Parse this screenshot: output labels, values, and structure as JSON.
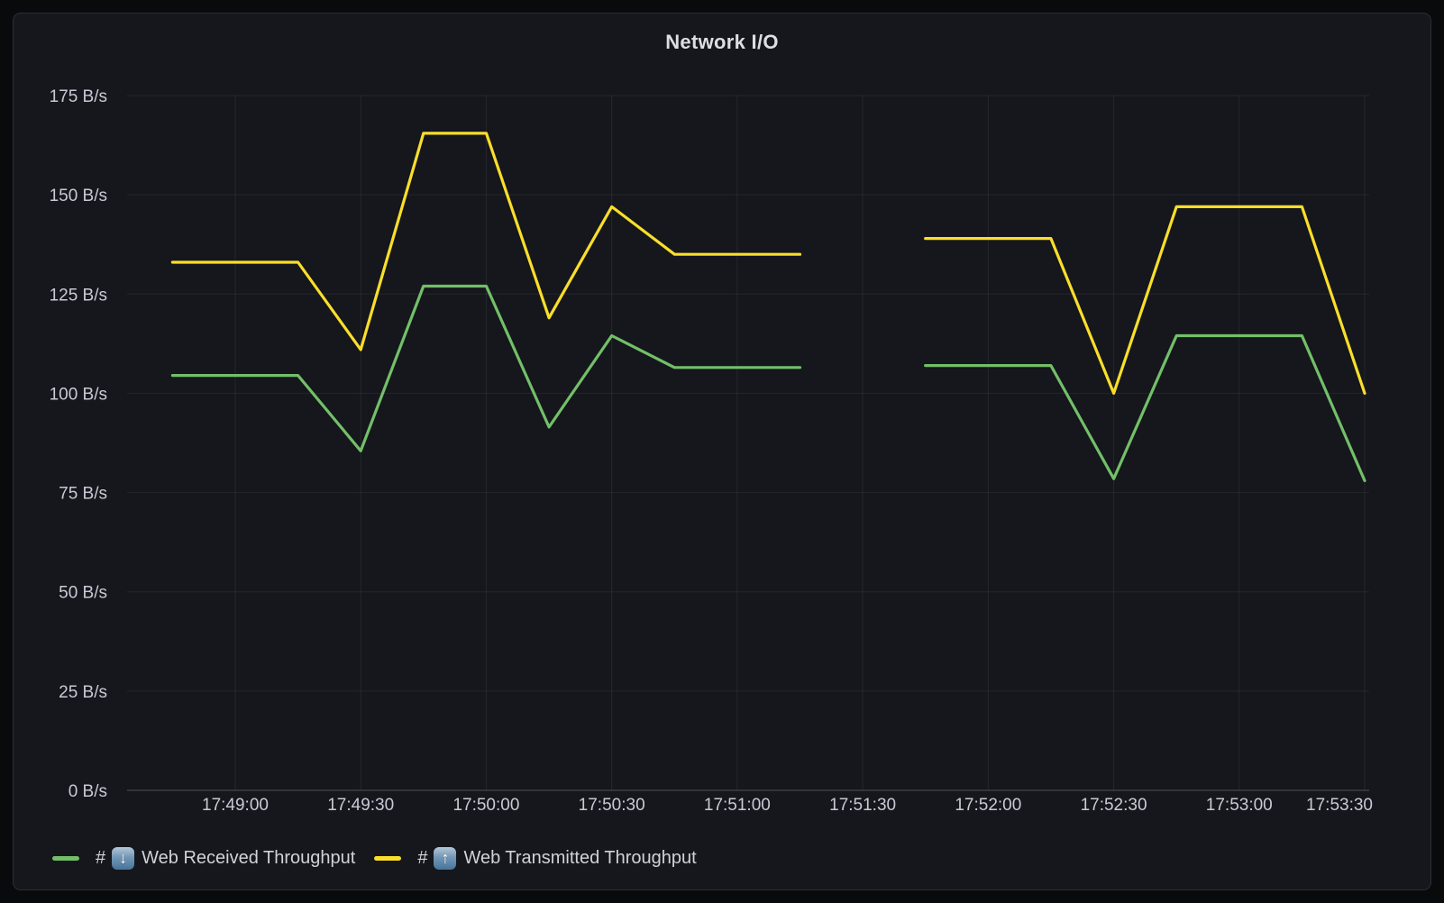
{
  "panel": {
    "title": "Network I/O"
  },
  "chart_data": {
    "type": "line",
    "title": "Network I/O",
    "x": [
      "17:48:45",
      "17:49:00",
      "17:49:15",
      "17:49:30",
      "17:49:45",
      "17:50:00",
      "17:50:15",
      "17:50:30",
      "17:50:45",
      "17:51:00",
      "17:51:15",
      "17:51:30",
      "17:51:45",
      "17:52:00",
      "17:52:15",
      "17:52:30",
      "17:52:45",
      "17:53:00",
      "17:53:15",
      "17:53:30"
    ],
    "x_tick_labels": [
      "17:49:00",
      "17:49:30",
      "17:50:00",
      "17:50:30",
      "17:51:00",
      "17:51:30",
      "17:52:00",
      "17:52:30",
      "17:53:00",
      "17:53:30"
    ],
    "y_tick_labels": [
      "0 B/s",
      "25 B/s",
      "50 B/s",
      "75 B/s",
      "100 B/s",
      "125 B/s",
      "150 B/s",
      "175 B/s"
    ],
    "ylim": [
      0,
      175
    ],
    "y_unit": "B/s",
    "grid": true,
    "legend_position": "bottom-left",
    "series": [
      {
        "name": "# ⬇ Web Received Throughput",
        "color": "#73bf69",
        "values": [
          104.5,
          104.5,
          104.5,
          85.5,
          127,
          127,
          91.5,
          114.5,
          106.5,
          106.5,
          106.5,
          null,
          107,
          107,
          107,
          78.5,
          114.5,
          114.5,
          114.5,
          78
        ]
      },
      {
        "name": "# ⬆ Web Transmitted Throughput",
        "color": "#fade2a",
        "values": [
          133,
          133,
          133,
          111,
          165.5,
          165.5,
          119,
          147,
          135,
          135,
          135,
          null,
          139,
          139,
          139,
          100,
          147,
          147,
          147,
          100
        ]
      }
    ]
  },
  "legend": {
    "items": [
      {
        "prefix": "#",
        "arrow": "down",
        "label": "Web Received Throughput",
        "color": "#73bf69"
      },
      {
        "prefix": "#",
        "arrow": "up",
        "label": "Web Transmitted Throughput",
        "color": "#fade2a"
      }
    ]
  }
}
